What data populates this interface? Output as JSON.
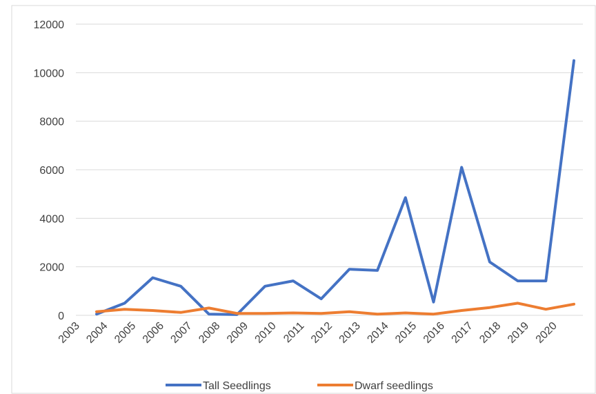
{
  "chart_data": {
    "type": "line",
    "title": "",
    "xlabel": "",
    "ylabel": "",
    "x_tick_labels": [
      "2003",
      "2004",
      "2005",
      "2006",
      "2007",
      "2008",
      "2009",
      "2010",
      "2011",
      "2012",
      "2013",
      "2014",
      "2015",
      "2016",
      "2017",
      "2018",
      "2019",
      "2020"
    ],
    "ylim": [
      0,
      12000
    ],
    "y_ticks": [
      0,
      2000,
      4000,
      6000,
      8000,
      10000,
      12000
    ],
    "y_tick_labels": [
      "0",
      "2000",
      "4000",
      "6000",
      "8000",
      "10000",
      "12000"
    ],
    "grid": true,
    "legend_position": "bottom",
    "series": [
      {
        "name": "Tall Seedlings",
        "color": "#4472C4",
        "values": [
          50,
          500,
          1550,
          1200,
          50,
          30,
          1200,
          1420,
          680,
          1900,
          1850,
          4850,
          550,
          6100,
          2200,
          1420,
          1420,
          10500
        ]
      },
      {
        "name": "Dwarf seedlings",
        "color": "#ED7D31",
        "values": [
          150,
          250,
          200,
          120,
          300,
          80,
          80,
          100,
          80,
          150,
          50,
          100,
          50,
          200,
          320,
          500,
          250,
          460
        ]
      }
    ]
  }
}
